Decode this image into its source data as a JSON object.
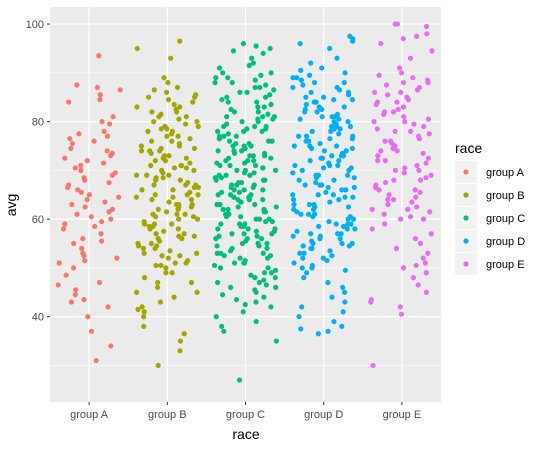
{
  "chart_data": {
    "type": "scatter",
    "xlabel": "race",
    "ylabel": "avg",
    "categories": [
      "group A",
      "group B",
      "group C",
      "group D",
      "group E"
    ],
    "ylim": [
      22.5,
      103.5
    ],
    "yticks": [
      40,
      60,
      80,
      100
    ],
    "jitter": "horizontal within each category",
    "grid": true,
    "legend": {
      "title": "race",
      "position": "right",
      "entries": [
        "group A",
        "group B",
        "group C",
        "group D",
        "group E"
      ]
    },
    "colors": [
      "#F8766D",
      "#A3A500",
      "#00BF7D",
      "#00B0F6",
      "#E76BF3"
    ],
    "series": [
      {
        "name": "group A",
        "values": [
          93.5,
          87.5,
          87.0,
          86.5,
          85.5,
          84.5,
          84.0,
          81.0,
          80.0,
          79.5,
          78.0,
          77.5,
          77.0,
          76.5,
          76.0,
          75.5,
          74.5,
          74.0,
          73.5,
          73.0,
          72.5,
          72.0,
          71.5,
          71.0,
          70.5,
          70.0,
          69.5,
          69.0,
          68.5,
          68.0,
          67.5,
          67.0,
          66.5,
          66.0,
          65.5,
          65.0,
          64.5,
          64.0,
          63.5,
          63.0,
          62.5,
          62.0,
          61.5,
          61.0,
          60.5,
          60.0,
          59.5,
          59.0,
          58.5,
          58.0,
          57.0,
          56.0,
          55.5,
          55.0,
          54.0,
          53.0,
          52.5,
          52.0,
          51.5,
          51.0,
          50.0,
          48.5,
          47.0,
          46.5,
          45.5,
          44.5,
          43.5,
          43.0,
          42.0,
          40.0,
          37.0,
          34.0,
          31.0
        ]
      },
      {
        "name": "group B",
        "values": [
          96.5,
          95.0,
          93.0,
          89.0,
          88.0,
          87.0,
          86.5,
          86.0,
          85.5,
          85.0,
          84.5,
          84.0,
          83.5,
          83.0,
          82.5,
          82.0,
          81.5,
          81.0,
          80.5,
          80.0,
          79.5,
          79.0,
          78.5,
          78.0,
          77.5,
          77.0,
          76.5,
          76.0,
          75.5,
          75.0,
          74.5,
          74.0,
          73.5,
          73.0,
          72.5,
          72.0,
          71.5,
          71.0,
          70.5,
          70.0,
          69.5,
          69.0,
          68.5,
          68.0,
          67.5,
          67.0,
          66.5,
          66.0,
          65.5,
          65.0,
          64.5,
          64.0,
          63.5,
          63.0,
          62.5,
          62.0,
          61.5,
          61.0,
          60.5,
          60.0,
          59.5,
          59.0,
          58.5,
          58.0,
          57.5,
          57.0,
          56.5,
          56.0,
          55.5,
          55.0,
          54.5,
          54.0,
          53.5,
          53.0,
          52.5,
          52.0,
          51.5,
          51.0,
          50.5,
          50.0,
          49.0,
          48.0,
          47.0,
          46.0,
          45.0,
          44.0,
          43.0,
          42.0,
          41.0,
          40.0,
          38.0,
          36.5,
          35.0,
          33.0,
          30.0,
          74.0,
          72.0,
          70.0,
          68.0,
          66.0,
          64.0,
          62.0,
          60.0,
          58.0,
          76.0,
          78.0,
          80.0,
          82.0,
          56.0,
          54.0,
          65.0,
          67.0,
          69.0,
          71.0,
          73.0,
          75.0,
          63.0,
          61.0,
          59.0,
          57.0,
          55.0,
          53.0,
          77.0,
          79.0,
          81.0,
          83.0,
          51.0,
          49.0,
          47.0,
          72.5,
          68.5,
          64.5,
          60.5,
          56.5,
          66.5,
          70.5,
          74.5,
          62.5,
          58.5,
          54.5,
          78.5,
          50.5,
          85.0,
          45.0,
          41.5,
          52.5,
          74.0,
          69.0,
          63.0,
          59.0,
          67.0,
          71.0,
          65.0,
          61.0
        ]
      },
      {
        "name": "group C",
        "values": [
          96.0,
          95.5,
          95.0,
          94.5,
          94.0,
          93.0,
          92.0,
          91.5,
          91.0,
          90.0,
          89.5,
          89.0,
          88.5,
          88.0,
          87.5,
          87.0,
          86.5,
          86.0,
          85.5,
          85.0,
          84.5,
          84.0,
          83.5,
          83.0,
          82.5,
          82.0,
          81.5,
          81.0,
          80.5,
          80.0,
          79.5,
          79.0,
          78.5,
          78.0,
          77.5,
          77.0,
          76.5,
          76.0,
          75.5,
          75.0,
          74.5,
          74.0,
          73.5,
          73.0,
          72.5,
          72.0,
          71.5,
          71.0,
          70.5,
          70.0,
          69.5,
          69.0,
          68.5,
          68.0,
          67.5,
          67.0,
          66.5,
          66.0,
          65.5,
          65.0,
          64.5,
          64.0,
          63.5,
          63.0,
          62.5,
          62.0,
          61.5,
          61.0,
          60.5,
          60.0,
          59.5,
          59.0,
          58.5,
          58.0,
          57.5,
          57.0,
          56.5,
          56.0,
          55.5,
          55.0,
          54.5,
          54.0,
          53.5,
          53.0,
          52.5,
          52.0,
          51.5,
          51.0,
          50.5,
          50.0,
          49.5,
          49.0,
          48.5,
          48.0,
          47.5,
          47.0,
          46.5,
          46.0,
          45.5,
          45.0,
          44.5,
          44.0,
          43.5,
          43.0,
          42.5,
          42.0,
          41.0,
          40.0,
          39.0,
          38.0,
          37.0,
          35.0,
          27.0,
          80.0,
          78.0,
          76.0,
          74.0,
          72.0,
          70.0,
          68.0,
          66.0,
          64.0,
          62.0,
          60.0,
          58.0,
          56.0,
          54.0,
          52.0,
          50.0,
          48.0,
          46.0,
          79.0,
          77.0,
          75.0,
          73.0,
          71.0,
          69.0,
          67.0,
          65.0,
          63.0,
          61.0,
          59.0,
          57.0,
          55.0,
          53.0,
          51.0,
          49.0,
          47.0,
          82.0,
          84.0,
          86.0,
          88.0,
          90.0,
          81.0,
          83.0,
          85.0,
          87.0,
          89.0,
          74.5,
          72.5,
          70.5,
          68.5,
          66.5,
          64.5,
          62.5,
          60.5,
          58.5,
          56.5,
          54.5,
          52.5,
          76.5,
          78.5,
          80.5,
          73.0,
          69.0,
          65.0,
          61.0,
          57.0,
          53.0,
          77.0,
          81.0,
          75.0,
          71.0,
          67.0,
          63.0,
          59.0,
          55.0,
          51.0,
          79.0,
          72.0,
          68.0,
          64.0,
          60.0,
          56.0,
          76.0,
          70.0,
          66.0,
          62.0,
          58.0,
          74.0,
          78.0,
          73.5,
          69.5,
          65.5,
          61.5,
          57.5,
          71.5,
          67.5,
          63.5,
          59.5,
          75.5
        ]
      },
      {
        "name": "group D",
        "values": [
          97.5,
          97.0,
          96.5,
          96.0,
          95.0,
          93.0,
          92.0,
          91.0,
          90.5,
          90.0,
          89.5,
          89.0,
          88.5,
          88.0,
          87.5,
          87.0,
          86.5,
          86.0,
          85.5,
          85.0,
          84.5,
          84.0,
          83.5,
          83.0,
          82.5,
          82.0,
          81.5,
          81.0,
          80.5,
          80.0,
          79.5,
          79.0,
          78.5,
          78.0,
          77.5,
          77.0,
          76.5,
          76.0,
          75.5,
          75.0,
          74.5,
          74.0,
          73.5,
          73.0,
          72.5,
          72.0,
          71.5,
          71.0,
          70.5,
          70.0,
          69.5,
          69.0,
          68.5,
          68.0,
          67.5,
          67.0,
          66.5,
          66.0,
          65.5,
          65.0,
          64.5,
          64.0,
          63.5,
          63.0,
          62.5,
          62.0,
          61.5,
          61.0,
          60.5,
          60.0,
          59.5,
          59.0,
          58.5,
          58.0,
          57.5,
          57.0,
          56.5,
          56.0,
          55.5,
          55.0,
          54.5,
          54.0,
          53.5,
          53.0,
          52.5,
          52.0,
          51.5,
          51.0,
          50.5,
          50.0,
          49.5,
          49.0,
          48.0,
          47.0,
          46.0,
          45.0,
          44.0,
          43.0,
          42.0,
          41.0,
          40.0,
          39.0,
          38.0,
          37.5,
          37.0,
          36.5,
          80.0,
          78.0,
          76.0,
          74.0,
          72.0,
          70.0,
          68.0,
          66.0,
          64.0,
          62.0,
          60.0,
          58.0,
          56.0,
          54.0,
          52.0,
          50.0,
          82.0,
          84.0,
          86.0,
          88.0,
          79.0,
          77.0,
          75.0,
          73.0,
          71.0,
          69.0,
          67.0,
          65.0,
          63.0,
          61.0,
          59.0,
          57.0,
          55.0,
          53.0,
          81.0,
          83.0,
          85.0,
          87.0,
          89.0,
          74.5,
          70.5,
          66.5,
          62.5,
          58.5,
          54.5,
          78.5,
          82.5,
          72.5,
          68.5,
          64.5,
          60.5,
          56.5,
          76.5,
          80.5,
          84.5,
          73.0,
          69.0,
          65.0,
          61.0,
          57.0,
          77.0,
          81.0,
          75.0,
          71.0,
          67.0,
          63.0,
          59.0,
          55.0,
          79.0
        ]
      },
      {
        "name": "group E",
        "values": [
          100.0,
          100.0,
          99.5,
          98.0,
          97.5,
          97.0,
          96.0,
          94.5,
          93.0,
          91.0,
          90.0,
          89.5,
          89.0,
          88.5,
          88.0,
          87.5,
          87.0,
          86.5,
          86.0,
          85.5,
          85.0,
          84.5,
          84.0,
          83.5,
          83.0,
          82.5,
          82.0,
          81.5,
          81.0,
          80.5,
          80.0,
          79.5,
          79.0,
          78.5,
          78.0,
          77.5,
          77.0,
          76.5,
          76.0,
          75.5,
          75.0,
          74.5,
          74.0,
          73.5,
          73.0,
          72.5,
          72.0,
          71.5,
          71.0,
          70.5,
          70.0,
          69.5,
          69.0,
          68.5,
          68.0,
          67.5,
          67.0,
          66.5,
          66.0,
          65.5,
          65.0,
          64.5,
          64.0,
          63.5,
          63.0,
          62.5,
          62.0,
          61.5,
          61.0,
          60.5,
          60.0,
          59.0,
          58.0,
          57.0,
          56.0,
          55.0,
          54.0,
          53.0,
          52.0,
          51.0,
          50.5,
          50.0,
          49.0,
          48.0,
          46.5,
          45.0,
          43.5,
          43.0,
          42.0,
          40.5,
          30.0,
          80.0,
          76.0,
          72.0,
          68.0,
          64.0,
          60.0,
          84.0,
          88.0,
          78.0,
          74.0,
          70.0,
          66.0,
          62.0,
          82.0,
          86.0
        ]
      }
    ]
  }
}
